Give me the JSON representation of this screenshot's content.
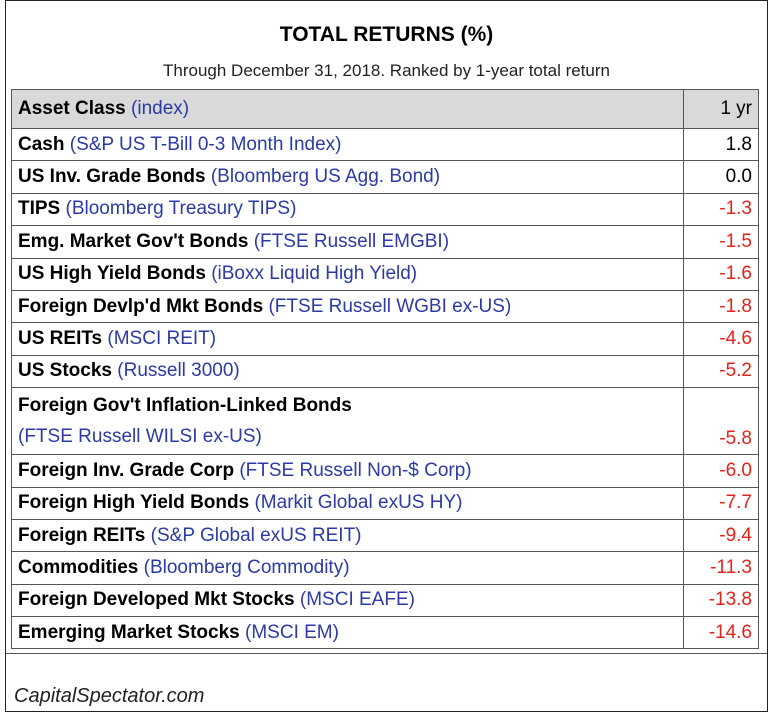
{
  "chart_data": {
    "type": "table",
    "title": "TOTAL RETURNS (%)",
    "subtitle": "Through December 31, 2018. Ranked by 1-year total return",
    "header": {
      "asset_class": "Asset Class",
      "index": "(index)",
      "value": "1 yr"
    },
    "rows": [
      {
        "asset": "Cash",
        "index": "(S&P US T-Bill 0-3 Month Index)",
        "display": "1.8",
        "value": 1.8
      },
      {
        "asset": "US Inv. Grade Bonds",
        "index": "(Bloomberg US Agg. Bond)",
        "display": "0.0",
        "value": 0.0
      },
      {
        "asset": "TIPS",
        "index": "(Bloomberg Treasury TIPS)",
        "display": "-1.3",
        "value": -1.3
      },
      {
        "asset": "Emg. Market Gov't Bonds",
        "index": "(FTSE Russell EMGBI)",
        "display": "-1.5",
        "value": -1.5
      },
      {
        "asset": "US High Yield Bonds",
        "index": "(iBoxx Liquid High Yield)",
        "display": "-1.6",
        "value": -1.6
      },
      {
        "asset": "Foreign Devlp'd Mkt Bonds",
        "index": "(FTSE Russell WGBI ex-US)",
        "display": "-1.8",
        "value": -1.8
      },
      {
        "asset": "US REITs",
        "index": "(MSCI REIT)",
        "display": "-4.6",
        "value": -4.6
      },
      {
        "asset": "US Stocks",
        "index": "(Russell 3000)",
        "display": "-5.2",
        "value": -5.2
      },
      {
        "asset": "Foreign Gov't Inflation-Linked Bonds",
        "index": "(FTSE Russell WILSI ex-US)",
        "display": "-5.8",
        "value": -5.8
      },
      {
        "asset": "Foreign Inv. Grade Corp",
        "index": "(FTSE Russell Non-$ Corp)",
        "display": "-6.0",
        "value": -6.0
      },
      {
        "asset": "Foreign High Yield Bonds",
        "index": "(Markit Global exUS HY)",
        "display": "-7.7",
        "value": -7.7
      },
      {
        "asset": "Foreign REITs",
        "index": "(S&P Global exUS REIT)",
        "display": "-9.4",
        "value": -9.4
      },
      {
        "asset": "Commodities",
        "index": "(Bloomberg Commodity)",
        "display": "-11.3",
        "value": -11.3
      },
      {
        "asset": "Foreign Developed Mkt Stocks",
        "index": "(MSCI EAFE)",
        "display": "-13.8",
        "value": -13.8
      },
      {
        "asset": "Emerging Market Stocks",
        "index": "(MSCI EM)",
        "display": "-14.6",
        "value": -14.6
      }
    ],
    "colors": {
      "asset": "#000000",
      "index": "#2b3aa6",
      "positive": "#000000",
      "negative": "#e6221b",
      "header_bg": "#d9d9d9"
    }
  },
  "footer": "CapitalSpectator.com"
}
